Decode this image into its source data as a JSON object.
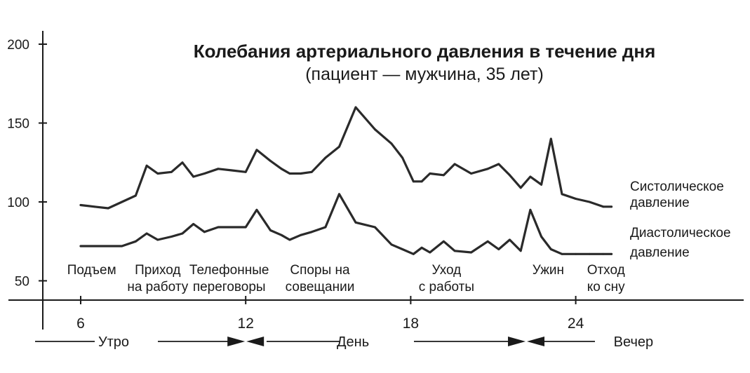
{
  "chart_data": {
    "type": "line",
    "title": "Колебания артериального давления в течение дня",
    "subtitle": "(пациент — мужчина, 35 лет)",
    "ylim": [
      40,
      205
    ],
    "xlim": [
      4,
      25.3
    ],
    "y_ticks": [
      "200",
      "150",
      "100",
      "50"
    ],
    "y_tick_values": [
      200,
      150,
      100,
      50
    ],
    "x_ticks": [
      "6",
      "12",
      "18",
      "24"
    ],
    "x_tick_values": [
      6,
      12,
      18,
      24
    ],
    "grid": false,
    "series": [
      {
        "name": "Систолическое давление",
        "name_lines": [
          "Систолическое",
          "давление"
        ],
        "x": [
          6,
          6.5,
          7,
          7.5,
          8,
          8.4,
          8.8,
          9.3,
          9.7,
          10.1,
          10.5,
          11.0,
          11.5,
          12.0,
          12.4,
          12.9,
          13.3,
          13.6,
          14.0,
          14.4,
          14.9,
          15.4,
          16.0,
          16.7,
          17.3,
          17.7,
          18.1,
          18.4,
          18.7,
          19.2,
          19.6,
          20.2,
          20.8,
          21.2,
          21.6,
          22.0,
          22.35,
          22.75,
          23.1,
          23.5,
          24.0,
          24.5,
          25.0,
          25.3
        ],
        "y": [
          98,
          97,
          96,
          100,
          104,
          123,
          118,
          119,
          125,
          116,
          118,
          121,
          120,
          119,
          133,
          126,
          121,
          118,
          118,
          119,
          128,
          135,
          160,
          146,
          137,
          128,
          113,
          113,
          118,
          117,
          124,
          118,
          121,
          124,
          117,
          109,
          116,
          111,
          140,
          105,
          102,
          100,
          97,
          97
        ]
      },
      {
        "name": "Диастолическое давление",
        "name_lines": [
          "Диастолическое",
          "давление"
        ],
        "x": [
          6,
          6.5,
          7,
          7.5,
          8,
          8.4,
          8.8,
          9.3,
          9.7,
          10.1,
          10.5,
          11.0,
          11.5,
          12.0,
          12.4,
          12.9,
          13.3,
          13.6,
          14.0,
          14.4,
          14.9,
          15.4,
          16.0,
          16.7,
          17.3,
          17.7,
          18.1,
          18.4,
          18.7,
          19.2,
          19.6,
          20.2,
          20.8,
          21.2,
          21.6,
          22.0,
          22.35,
          22.75,
          23.1,
          23.5,
          24.0,
          24.5,
          25.0,
          25.3
        ],
        "y": [
          72,
          72,
          72,
          72,
          75,
          80,
          76,
          78,
          80,
          86,
          81,
          84,
          84,
          84,
          95,
          82,
          79,
          76,
          79,
          81,
          84,
          105,
          87,
          84,
          73,
          70,
          67,
          71,
          68,
          75,
          69,
          68,
          75,
          70,
          76,
          69,
          95,
          78,
          70,
          67,
          67,
          67,
          67,
          67
        ]
      }
    ],
    "annotations": [
      {
        "x": 6.4,
        "lines": [
          "Подъем"
        ]
      },
      {
        "x": 8.8,
        "lines": [
          "Приход",
          "на работу"
        ]
      },
      {
        "x": 11.4,
        "lines": [
          "Телефонные",
          "переговоры"
        ]
      },
      {
        "x": 14.7,
        "lines": [
          "Споры на",
          "совещании"
        ]
      },
      {
        "x": 19.3,
        "lines": [
          "Уход",
          "с работы"
        ]
      },
      {
        "x": 23.0,
        "lines": [
          "Ужин"
        ]
      },
      {
        "x": 25.1,
        "lines": [
          "Отход",
          "ко сну"
        ]
      }
    ],
    "periods": [
      {
        "label": "Утро",
        "x": 7.2
      },
      {
        "label": "День",
        "x": 15.9
      },
      {
        "label": "Вечер",
        "x": 26.1
      }
    ]
  }
}
